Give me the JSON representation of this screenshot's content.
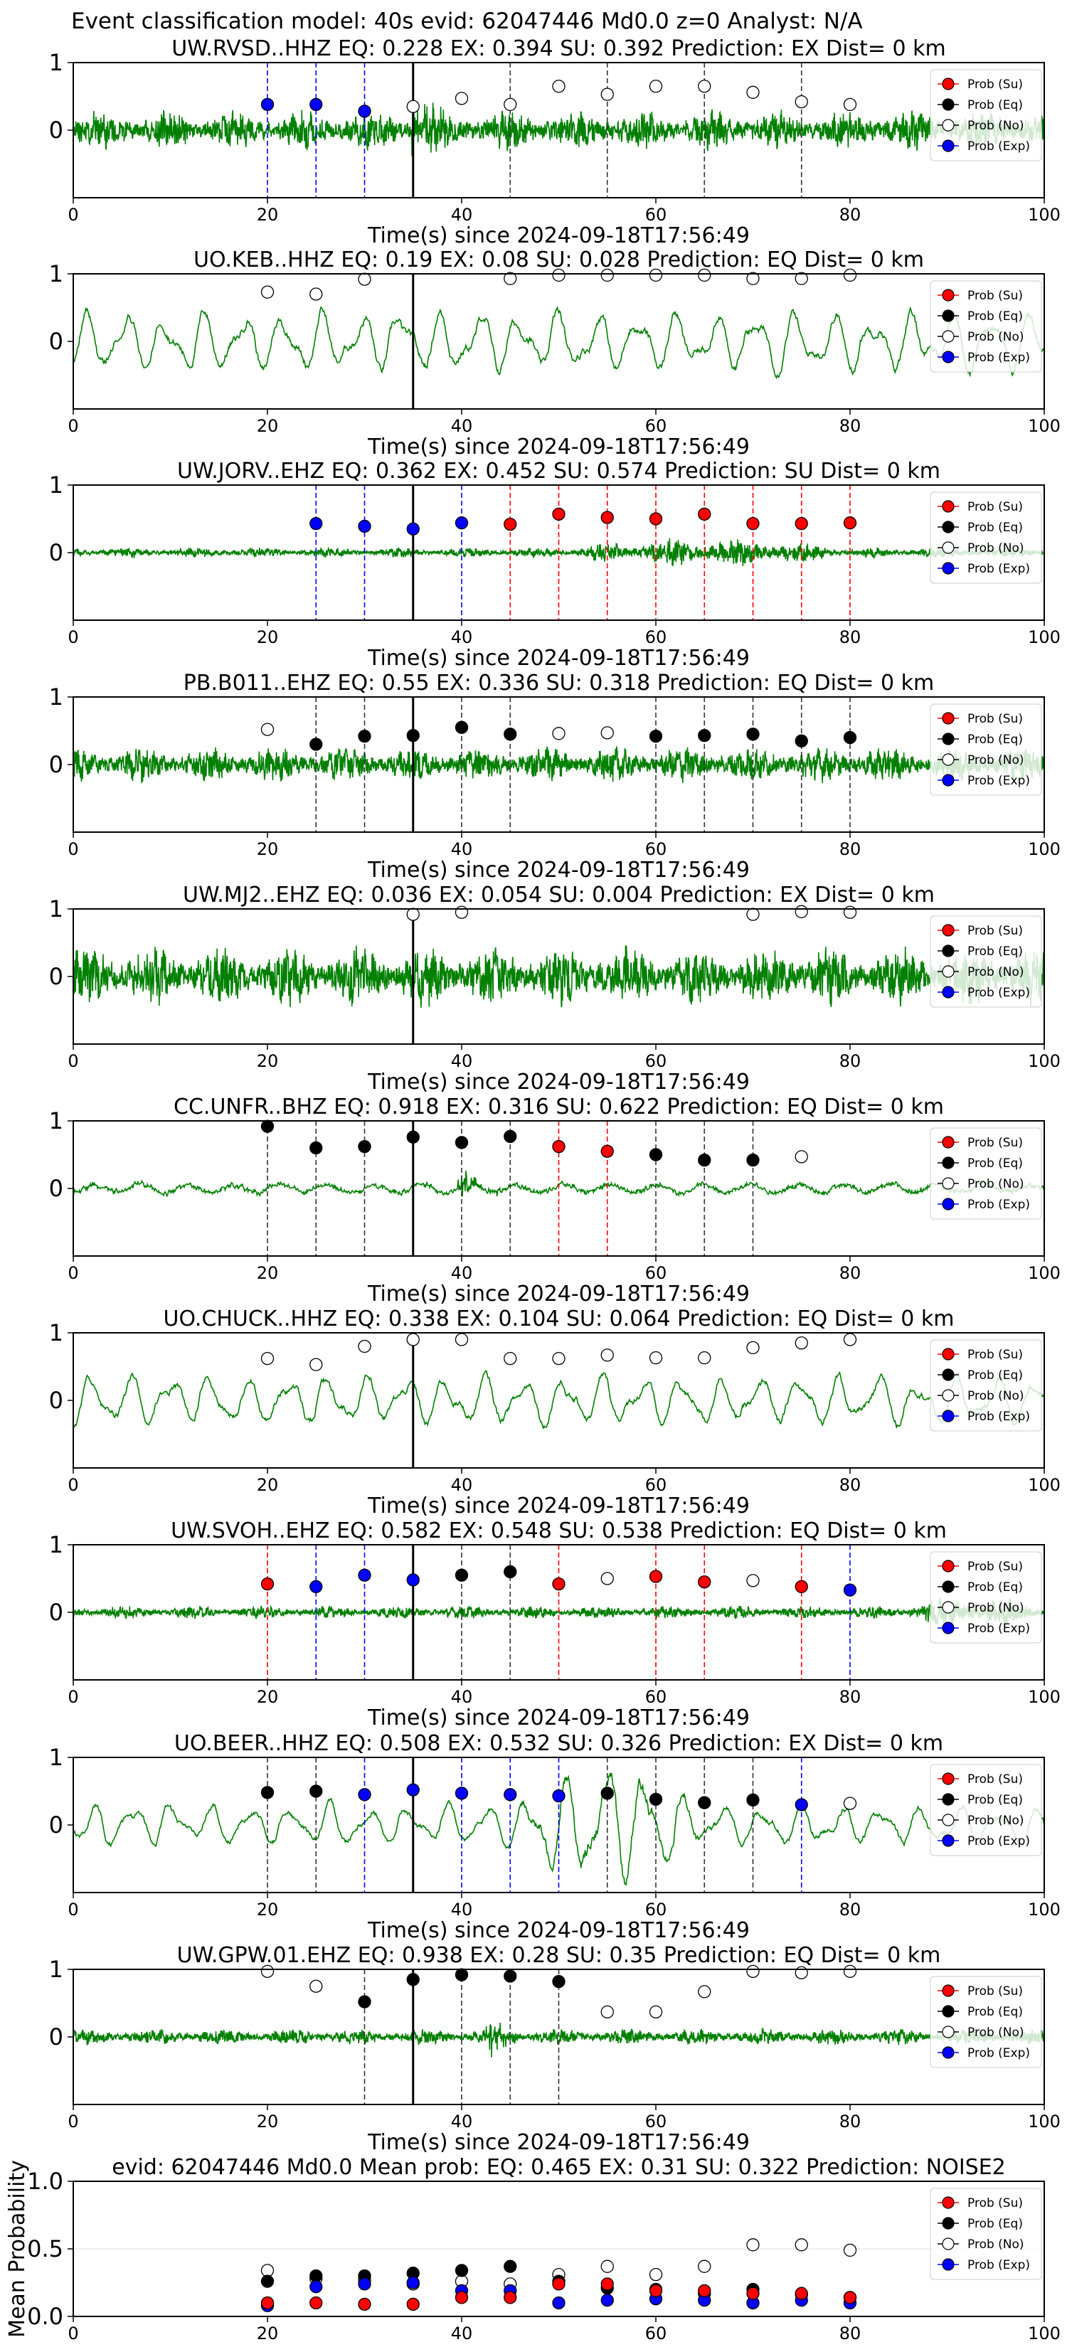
{
  "figure_title": "Event classification model: 40s evid: 62047446 Md0.0 z=0 Analyst: N/A",
  "colors": {
    "waveform": "#008000",
    "su": "#ff0000",
    "eq": "#000000",
    "no": "#ffffff",
    "exp": "#0000ff",
    "su_line": "#ff0000",
    "eq_line": "#333333",
    "exp_line": "#0000ff",
    "origin_line": "#000000"
  },
  "legend": [
    "Prob (Su)",
    "Prob (Eq)",
    "Prob (No)",
    "Prob (Exp)"
  ],
  "chart_data": [
    {
      "type": "line",
      "id": "p1",
      "title": "UW.RVSD..HHZ   EQ: 0.228  EX: 0.394  SU: 0.392   Prediction: EX    Dist= 0 km",
      "xlabel": "Time(s) since 2024-09-18T17:56:49",
      "xlim": [
        0,
        100
      ],
      "xticks": [
        0,
        20,
        40,
        60,
        80,
        100
      ],
      "yticks": [
        0,
        1
      ],
      "origin_time": 35,
      "waveform": {
        "style": "highfreq",
        "amplitude": 0.5,
        "seed": 11,
        "burst_at": 35,
        "burst_amp": 1.3
      },
      "points": [
        {
          "x": 20,
          "y": 0.38,
          "c": "exp",
          "line": "exp"
        },
        {
          "x": 25,
          "y": 0.38,
          "c": "exp",
          "line": "exp"
        },
        {
          "x": 30,
          "y": 0.28,
          "c": "exp",
          "line": "exp"
        },
        {
          "x": 35,
          "y": 0.35,
          "c": "no"
        },
        {
          "x": 40,
          "y": 0.47,
          "c": "no"
        },
        {
          "x": 45,
          "y": 0.38,
          "c": "no",
          "line": "eq"
        },
        {
          "x": 50,
          "y": 0.65,
          "c": "no"
        },
        {
          "x": 55,
          "y": 0.53,
          "c": "no",
          "line": "eq"
        },
        {
          "x": 60,
          "y": 0.65,
          "c": "no"
        },
        {
          "x": 65,
          "y": 0.65,
          "c": "no",
          "line": "eq"
        },
        {
          "x": 70,
          "y": 0.56,
          "c": "no"
        },
        {
          "x": 75,
          "y": 0.42,
          "c": "no",
          "line": "eq"
        },
        {
          "x": 80,
          "y": 0.38,
          "c": "no"
        }
      ]
    },
    {
      "type": "line",
      "id": "p2",
      "title": "UO.KEB..HHZ   EQ: 0.19  EX: 0.08  SU: 0.028   Prediction: EQ    Dist= 0 km",
      "xlabel": "Time(s) since 2024-09-18T17:56:49",
      "xlim": [
        0,
        100
      ],
      "xticks": [
        0,
        20,
        40,
        60,
        80,
        100
      ],
      "yticks": [
        0,
        1
      ],
      "origin_time": 35,
      "waveform": {
        "style": "smooth",
        "amplitude": 0.75,
        "seed": 22
      },
      "points": [
        {
          "x": 20,
          "y": 0.73,
          "c": "no"
        },
        {
          "x": 25,
          "y": 0.7,
          "c": "no"
        },
        {
          "x": 30,
          "y": 0.92,
          "c": "no"
        },
        {
          "x": 45,
          "y": 0.93,
          "c": "no"
        },
        {
          "x": 50,
          "y": 0.98,
          "c": "no"
        },
        {
          "x": 55,
          "y": 0.98,
          "c": "no"
        },
        {
          "x": 60,
          "y": 0.98,
          "c": "no"
        },
        {
          "x": 65,
          "y": 0.98,
          "c": "no"
        },
        {
          "x": 70,
          "y": 0.93,
          "c": "no"
        },
        {
          "x": 75,
          "y": 0.93,
          "c": "no"
        },
        {
          "x": 80,
          "y": 0.98,
          "c": "no"
        }
      ]
    },
    {
      "type": "line",
      "id": "p3",
      "title": "UW.JORV..EHZ   EQ: 0.362  EX: 0.452  SU: 0.574   Prediction: SU    Dist= 0 km",
      "xlabel": "Time(s) since 2024-09-18T17:56:49",
      "xlim": [
        0,
        100
      ],
      "xticks": [
        0,
        20,
        40,
        60,
        80,
        100
      ],
      "yticks": [
        0,
        1
      ],
      "origin_time": 35,
      "waveform": {
        "style": "highfreq",
        "amplitude": 0.12,
        "seed": 33,
        "envelope": [
          50,
          80,
          0.7
        ]
      },
      "points": [
        {
          "x": 25,
          "y": 0.43,
          "c": "exp",
          "line": "exp"
        },
        {
          "x": 30,
          "y": 0.39,
          "c": "exp",
          "line": "exp"
        },
        {
          "x": 35,
          "y": 0.35,
          "c": "exp"
        },
        {
          "x": 40,
          "y": 0.44,
          "c": "exp",
          "line": "exp"
        },
        {
          "x": 45,
          "y": 0.42,
          "c": "su",
          "line": "su"
        },
        {
          "x": 50,
          "y": 0.57,
          "c": "su",
          "line": "su"
        },
        {
          "x": 55,
          "y": 0.52,
          "c": "su",
          "line": "su"
        },
        {
          "x": 60,
          "y": 0.5,
          "c": "su",
          "line": "su"
        },
        {
          "x": 65,
          "y": 0.57,
          "c": "su",
          "line": "su"
        },
        {
          "x": 70,
          "y": 0.43,
          "c": "su",
          "line": "su"
        },
        {
          "x": 75,
          "y": 0.43,
          "c": "su",
          "line": "su"
        },
        {
          "x": 80,
          "y": 0.44,
          "c": "su",
          "line": "su"
        }
      ]
    },
    {
      "type": "line",
      "id": "p4",
      "title": "PB.B011..EHZ   EQ: 0.55  EX: 0.336  SU: 0.318   Prediction: EQ    Dist= 0 km",
      "xlabel": "Time(s) since 2024-09-18T17:56:49",
      "xlim": [
        0,
        100
      ],
      "xticks": [
        0,
        20,
        40,
        60,
        80,
        100
      ],
      "yticks": [
        0,
        1
      ],
      "origin_time": 35,
      "waveform": {
        "style": "highfreq",
        "amplitude": 0.45,
        "seed": 44
      },
      "points": [
        {
          "x": 20,
          "y": 0.52,
          "c": "no"
        },
        {
          "x": 25,
          "y": 0.3,
          "c": "eq",
          "line": "eq"
        },
        {
          "x": 30,
          "y": 0.42,
          "c": "eq",
          "line": "eq"
        },
        {
          "x": 35,
          "y": 0.43,
          "c": "eq"
        },
        {
          "x": 40,
          "y": 0.55,
          "c": "eq",
          "line": "eq"
        },
        {
          "x": 45,
          "y": 0.45,
          "c": "eq",
          "line": "eq"
        },
        {
          "x": 50,
          "y": 0.46,
          "c": "no"
        },
        {
          "x": 55,
          "y": 0.47,
          "c": "no"
        },
        {
          "x": 60,
          "y": 0.42,
          "c": "eq",
          "line": "eq"
        },
        {
          "x": 65,
          "y": 0.43,
          "c": "eq",
          "line": "eq"
        },
        {
          "x": 70,
          "y": 0.45,
          "c": "eq",
          "line": "eq"
        },
        {
          "x": 75,
          "y": 0.35,
          "c": "eq",
          "line": "eq"
        },
        {
          "x": 80,
          "y": 0.4,
          "c": "eq",
          "line": "eq"
        }
      ]
    },
    {
      "type": "line",
      "id": "p5",
      "title": "UW.MJ2..EHZ   EQ: 0.036  EX: 0.054  SU: 0.004   Prediction: EX    Dist= 0 km",
      "xlabel": "Time(s) since 2024-09-18T17:56:49",
      "xlim": [
        0,
        100
      ],
      "xticks": [
        0,
        20,
        40,
        60,
        80,
        100
      ],
      "yticks": [
        0,
        1
      ],
      "origin_time": 35,
      "waveform": {
        "style": "highfreq",
        "amplitude": 0.75,
        "seed": 55
      },
      "points": [
        {
          "x": 35,
          "y": 0.92,
          "c": "no"
        },
        {
          "x": 40,
          "y": 0.95,
          "c": "no"
        },
        {
          "x": 70,
          "y": 0.92,
          "c": "no"
        },
        {
          "x": 75,
          "y": 0.96,
          "c": "no"
        },
        {
          "x": 80,
          "y": 0.95,
          "c": "no"
        }
      ]
    },
    {
      "type": "line",
      "id": "p6",
      "title": "CC.UNFR..BHZ   EQ: 0.918  EX: 0.316  SU: 0.622   Prediction: EQ    Dist= 0 km",
      "xlabel": "Time(s) since 2024-09-18T17:56:49",
      "xlim": [
        0,
        100
      ],
      "xticks": [
        0,
        20,
        40,
        60,
        80,
        100
      ],
      "yticks": [
        0,
        1
      ],
      "origin_time": 35,
      "waveform": {
        "style": "mixed",
        "amplitude": 0.2,
        "seed": 66,
        "burst_at": 40,
        "burst_amp": 0.9
      },
      "points": [
        {
          "x": 20,
          "y": 0.92,
          "c": "eq",
          "line": "eq"
        },
        {
          "x": 25,
          "y": 0.6,
          "c": "eq",
          "line": "eq"
        },
        {
          "x": 30,
          "y": 0.62,
          "c": "eq",
          "line": "eq"
        },
        {
          "x": 35,
          "y": 0.76,
          "c": "eq"
        },
        {
          "x": 40,
          "y": 0.68,
          "c": "eq",
          "line": "eq"
        },
        {
          "x": 45,
          "y": 0.77,
          "c": "eq",
          "line": "eq"
        },
        {
          "x": 50,
          "y": 0.62,
          "c": "su",
          "line": "su"
        },
        {
          "x": 55,
          "y": 0.55,
          "c": "su",
          "line": "su"
        },
        {
          "x": 60,
          "y": 0.5,
          "c": "eq",
          "line": "eq"
        },
        {
          "x": 65,
          "y": 0.42,
          "c": "eq",
          "line": "eq"
        },
        {
          "x": 70,
          "y": 0.42,
          "c": "eq",
          "line": "eq"
        },
        {
          "x": 75,
          "y": 0.47,
          "c": "no"
        }
      ]
    },
    {
      "type": "line",
      "id": "p7",
      "title": "UO.CHUCK..HHZ   EQ: 0.338  EX: 0.104  SU: 0.064   Prediction: EQ    Dist= 0 km",
      "xlabel": "Time(s) since 2024-09-18T17:56:49",
      "xlim": [
        0,
        100
      ],
      "xticks": [
        0,
        20,
        40,
        60,
        80,
        100
      ],
      "yticks": [
        0,
        1
      ],
      "origin_time": 35,
      "waveform": {
        "style": "smooth",
        "amplitude": 0.6,
        "seed": 77
      },
      "points": [
        {
          "x": 20,
          "y": 0.62,
          "c": "no"
        },
        {
          "x": 25,
          "y": 0.53,
          "c": "no"
        },
        {
          "x": 30,
          "y": 0.8,
          "c": "no"
        },
        {
          "x": 35,
          "y": 0.9,
          "c": "no"
        },
        {
          "x": 40,
          "y": 0.9,
          "c": "no"
        },
        {
          "x": 45,
          "y": 0.62,
          "c": "no"
        },
        {
          "x": 50,
          "y": 0.62,
          "c": "no"
        },
        {
          "x": 55,
          "y": 0.67,
          "c": "no"
        },
        {
          "x": 60,
          "y": 0.63,
          "c": "no"
        },
        {
          "x": 65,
          "y": 0.63,
          "c": "no"
        },
        {
          "x": 70,
          "y": 0.78,
          "c": "no"
        },
        {
          "x": 75,
          "y": 0.85,
          "c": "no"
        },
        {
          "x": 80,
          "y": 0.9,
          "c": "no"
        }
      ]
    },
    {
      "type": "line",
      "id": "p8",
      "title": "UW.SVOH..EHZ   EQ: 0.582  EX: 0.548  SU: 0.538   Prediction: EQ    Dist= 0 km",
      "xlabel": "Time(s) since 2024-09-18T17:56:49",
      "xlim": [
        0,
        100
      ],
      "xticks": [
        0,
        20,
        40,
        60,
        80,
        100
      ],
      "yticks": [
        0,
        1
      ],
      "origin_time": 35,
      "waveform": {
        "style": "highfreq",
        "amplitude": 0.16,
        "seed": 88,
        "envelope": [
          85,
          100,
          0.5
        ]
      },
      "points": [
        {
          "x": 20,
          "y": 0.42,
          "c": "su",
          "line": "su"
        },
        {
          "x": 25,
          "y": 0.38,
          "c": "exp",
          "line": "exp"
        },
        {
          "x": 30,
          "y": 0.55,
          "c": "exp",
          "line": "exp"
        },
        {
          "x": 35,
          "y": 0.48,
          "c": "exp"
        },
        {
          "x": 40,
          "y": 0.55,
          "c": "eq",
          "line": "eq"
        },
        {
          "x": 45,
          "y": 0.6,
          "c": "eq",
          "line": "eq"
        },
        {
          "x": 50,
          "y": 0.42,
          "c": "su",
          "line": "su"
        },
        {
          "x": 55,
          "y": 0.5,
          "c": "no"
        },
        {
          "x": 60,
          "y": 0.53,
          "c": "su",
          "line": "su"
        },
        {
          "x": 65,
          "y": 0.45,
          "c": "su",
          "line": "su"
        },
        {
          "x": 70,
          "y": 0.47,
          "c": "no"
        },
        {
          "x": 75,
          "y": 0.38,
          "c": "su",
          "line": "su"
        },
        {
          "x": 80,
          "y": 0.33,
          "c": "exp",
          "line": "exp"
        }
      ]
    },
    {
      "type": "line",
      "id": "p9",
      "title": "UO.BEER..HHZ   EQ: 0.508  EX: 0.532  SU: 0.326   Prediction: EX    Dist= 0 km",
      "xlabel": "Time(s) since 2024-09-18T17:56:49",
      "xlim": [
        0,
        100
      ],
      "xticks": [
        0,
        20,
        40,
        60,
        80,
        100
      ],
      "yticks": [
        0,
        1
      ],
      "origin_time": 35,
      "waveform": {
        "style": "smooth",
        "amplitude": 0.5,
        "seed": 99,
        "envelope": [
          45,
          65,
          0.7
        ]
      },
      "points": [
        {
          "x": 20,
          "y": 0.48,
          "c": "eq",
          "line": "eq"
        },
        {
          "x": 25,
          "y": 0.5,
          "c": "eq",
          "line": "eq"
        },
        {
          "x": 30,
          "y": 0.45,
          "c": "exp",
          "line": "exp"
        },
        {
          "x": 35,
          "y": 0.52,
          "c": "exp"
        },
        {
          "x": 40,
          "y": 0.47,
          "c": "exp",
          "line": "exp"
        },
        {
          "x": 45,
          "y": 0.45,
          "c": "exp",
          "line": "exp"
        },
        {
          "x": 50,
          "y": 0.43,
          "c": "exp",
          "line": "exp"
        },
        {
          "x": 55,
          "y": 0.47,
          "c": "eq",
          "line": "eq"
        },
        {
          "x": 60,
          "y": 0.38,
          "c": "eq",
          "line": "eq"
        },
        {
          "x": 65,
          "y": 0.33,
          "c": "eq",
          "line": "eq"
        },
        {
          "x": 70,
          "y": 0.37,
          "c": "eq",
          "line": "eq"
        },
        {
          "x": 75,
          "y": 0.3,
          "c": "exp",
          "line": "exp"
        },
        {
          "x": 80,
          "y": 0.32,
          "c": "no"
        }
      ]
    },
    {
      "type": "line",
      "id": "p10",
      "title": "UW.GPW.01.EHZ   EQ: 0.938  EX: 0.28  SU: 0.35   Prediction: EQ    Dist= 0 km",
      "xlabel": "Time(s) since 2024-09-18T17:56:49",
      "xlim": [
        0,
        100
      ],
      "xticks": [
        0,
        20,
        40,
        60,
        80,
        100
      ],
      "yticks": [
        0,
        1
      ],
      "origin_time": 35,
      "waveform": {
        "style": "highfreq",
        "amplitude": 0.2,
        "seed": 111,
        "burst_at": 43,
        "burst_amp": 0.9
      },
      "points": [
        {
          "x": 20,
          "y": 0.97,
          "c": "no"
        },
        {
          "x": 25,
          "y": 0.75,
          "c": "no"
        },
        {
          "x": 30,
          "y": 0.52,
          "c": "eq",
          "line": "eq"
        },
        {
          "x": 35,
          "y": 0.85,
          "c": "eq"
        },
        {
          "x": 40,
          "y": 0.92,
          "c": "eq",
          "line": "eq"
        },
        {
          "x": 45,
          "y": 0.9,
          "c": "eq",
          "line": "eq"
        },
        {
          "x": 50,
          "y": 0.82,
          "c": "eq",
          "line": "eq"
        },
        {
          "x": 55,
          "y": 0.37,
          "c": "no"
        },
        {
          "x": 60,
          "y": 0.37,
          "c": "no"
        },
        {
          "x": 65,
          "y": 0.67,
          "c": "no"
        },
        {
          "x": 70,
          "y": 0.97,
          "c": "no"
        },
        {
          "x": 75,
          "y": 0.95,
          "c": "no"
        },
        {
          "x": 80,
          "y": 0.97,
          "c": "no"
        }
      ]
    },
    {
      "type": "scatter",
      "id": "mean",
      "title": "evid: 62047446  Md0.0   Mean prob:   EQ: 0.465  EX: 0.31  SU: 0.322   Prediction: NOISE2",
      "xlabel": "",
      "ylabel": "Mean Probability",
      "xlim": [
        0,
        100
      ],
      "ylim": [
        0,
        1
      ],
      "xticks": [
        0,
        20,
        40,
        60,
        80,
        100
      ],
      "yticks": [
        "0.0",
        "0.5",
        "1.0"
      ],
      "x": [
        20,
        25,
        30,
        35,
        40,
        45,
        50,
        55,
        60,
        65,
        70,
        75,
        80
      ],
      "series": [
        {
          "name": "Prob (No)",
          "c": "no",
          "values": [
            0.34,
            0.28,
            0.27,
            0.24,
            0.26,
            0.24,
            0.31,
            0.37,
            0.31,
            0.37,
            0.53,
            0.53,
            0.49
          ]
        },
        {
          "name": "Prob (Eq)",
          "c": "eq",
          "values": [
            0.26,
            0.3,
            0.3,
            0.32,
            0.34,
            0.37,
            0.26,
            0.21,
            0.2,
            0.17,
            0.2,
            0.16,
            0.14
          ]
        },
        {
          "name": "Prob (Exp)",
          "c": "exp",
          "values": [
            0.08,
            0.22,
            0.24,
            0.25,
            0.19,
            0.19,
            0.1,
            0.12,
            0.13,
            0.12,
            0.1,
            0.12,
            0.1
          ]
        },
        {
          "name": "Prob (Su)",
          "c": "su",
          "values": [
            0.1,
            0.1,
            0.09,
            0.09,
            0.14,
            0.14,
            0.24,
            0.24,
            0.19,
            0.19,
            0.17,
            0.17,
            0.14
          ]
        }
      ]
    }
  ]
}
